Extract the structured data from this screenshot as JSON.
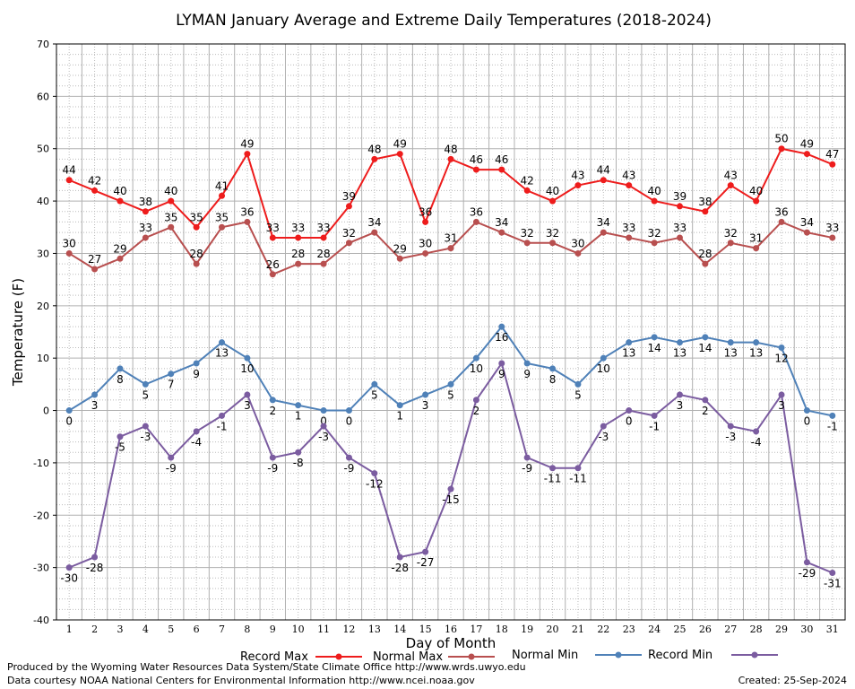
{
  "chart_data": {
    "type": "line",
    "title": "LYMAN January Average and Extreme Daily Temperatures (2018-2024)",
    "xlabel": "Day of Month",
    "ylabel": "Temperature (F)",
    "xlim": [
      1,
      31
    ],
    "ylim": [
      -40,
      70
    ],
    "y_ticks": [
      -40,
      -30,
      -20,
      -10,
      0,
      10,
      20,
      30,
      40,
      50,
      60,
      70
    ],
    "x": [
      1,
      2,
      3,
      4,
      5,
      6,
      7,
      8,
      9,
      10,
      11,
      12,
      13,
      14,
      15,
      16,
      17,
      18,
      19,
      20,
      21,
      22,
      23,
      24,
      25,
      26,
      27,
      28,
      29,
      30,
      31
    ],
    "grid": true,
    "legend_position": "bottom",
    "series": [
      {
        "name": "Record Max",
        "color": "#ee1c1c",
        "values": [
          44,
          42,
          40,
          38,
          40,
          35,
          41,
          49,
          33,
          33,
          33,
          39,
          48,
          49,
          36,
          48,
          46,
          46,
          42,
          40,
          43,
          44,
          43,
          40,
          39,
          38,
          43,
          40,
          50,
          49,
          47
        ]
      },
      {
        "name": "Normal Max",
        "color": "#b84f4f",
        "values": [
          30,
          27,
          29,
          33,
          35,
          28,
          35,
          36,
          26,
          28,
          28,
          32,
          34,
          29,
          30,
          31,
          36,
          34,
          32,
          32,
          30,
          34,
          33,
          32,
          33,
          28,
          32,
          31,
          36,
          34,
          33
        ]
      },
      {
        "name": "Normal Min",
        "color": "#4f81b8",
        "values": [
          0,
          3,
          8,
          5,
          7,
          9,
          13,
          10,
          2,
          1,
          0,
          0,
          5,
          1,
          3,
          5,
          10,
          16,
          9,
          8,
          5,
          10,
          13,
          14,
          13,
          14,
          13,
          13,
          12,
          0,
          -1
        ]
      },
      {
        "name": "Record Min",
        "color": "#7b5ca0",
        "values": [
          -30,
          -28,
          -5,
          -3,
          -9,
          -4,
          -1,
          3,
          -9,
          -8,
          -3,
          -9,
          -12,
          -28,
          -27,
          -15,
          2,
          9,
          -9,
          -11,
          -11,
          -3,
          0,
          -1,
          3,
          2,
          -3,
          -4,
          3,
          -29,
          -31
        ]
      }
    ]
  },
  "footer": {
    "credit_line1": "Produced by the Wyoming Water Resources Data System/State Climate Office http://www.wrds.uwyo.edu",
    "credit_line2": "Data courtesy NOAA National Centers for Environmental Information http://www.ncei.noaa.gov",
    "created": "Created:  25-Sep-2024"
  }
}
